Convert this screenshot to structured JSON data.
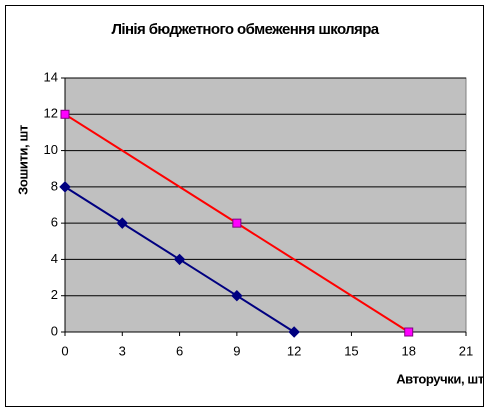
{
  "chart_data": {
    "type": "line",
    "title": "Лінія бюджетного обмеження школяра",
    "xlabel": "Авторучки, шт",
    "ylabel": "Зошити, шт",
    "xlim": [
      0,
      21
    ],
    "xticks": [
      0,
      3,
      6,
      9,
      12,
      15,
      18,
      21
    ],
    "ylim": [
      0,
      14
    ],
    "yticks": [
      0,
      2,
      4,
      6,
      8,
      10,
      12,
      14
    ],
    "grid": true,
    "background": "#c0c0c0",
    "series": [
      {
        "color": "#000080",
        "marker": "diamond",
        "marker_color": "#000080",
        "x": [
          0,
          3,
          6,
          9,
          12
        ],
        "values": [
          8,
          6,
          4,
          2,
          0
        ]
      },
      {
        "color": "#ff0000",
        "marker": "square",
        "marker_color": "#ff00ff",
        "x": [
          0,
          9,
          18
        ],
        "values": [
          12,
          6,
          0
        ]
      }
    ]
  }
}
